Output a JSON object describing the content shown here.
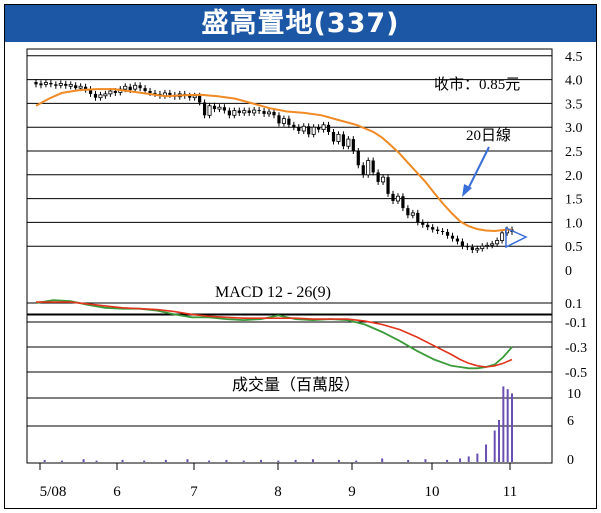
{
  "title": "盛高置地(337)",
  "colors": {
    "title_bg": "#1c57a6",
    "price_candles": "#000000",
    "ma20": "#f08a24",
    "macd_line": "#3a9a3a",
    "signal_line": "#e0341c",
    "volume_bars": "#6a4fb3",
    "annotation_arrow": "#3a6fd8"
  },
  "chart_data": [
    {
      "type": "line",
      "panel": "price",
      "y_ticks": [
        "4.5",
        "4.0",
        "3.5",
        "3.0",
        "2.5",
        "2.0",
        "1.5",
        "1.0",
        "0.5",
        "0"
      ],
      "ylim": [
        0,
        4.5
      ],
      "x_ticks": [
        "5/08",
        "6",
        "7",
        "8",
        "9",
        "10",
        "11"
      ],
      "annotations": [
        "收市：0.85元",
        "20日線"
      ],
      "series": [
        {
          "name": "20日線",
          "x": [
            0,
            3,
            6,
            10,
            14,
            18,
            22,
            26,
            30,
            34,
            38,
            42,
            46,
            50,
            54,
            58,
            62,
            66,
            70,
            74,
            78,
            80,
            82,
            84,
            86,
            88,
            90,
            92,
            94,
            96,
            98,
            100,
            102,
            104,
            106,
            108,
            110
          ],
          "values": [
            3.45,
            3.6,
            3.72,
            3.78,
            3.8,
            3.8,
            3.75,
            3.7,
            3.65,
            3.67,
            3.68,
            3.65,
            3.6,
            3.5,
            3.4,
            3.33,
            3.3,
            3.25,
            3.15,
            3.05,
            2.9,
            2.78,
            2.62,
            2.45,
            2.25,
            2.05,
            1.85,
            1.62,
            1.4,
            1.2,
            1.02,
            0.92,
            0.86,
            0.83,
            0.82,
            0.84,
            0.85
          ]
        }
      ],
      "candles": [
        [
          3.95,
          3.9
        ],
        [
          3.92,
          3.88
        ],
        [
          3.9,
          3.94
        ],
        [
          3.93,
          3.9
        ],
        [
          3.9,
          3.87
        ],
        [
          3.88,
          3.92
        ],
        [
          3.91,
          3.87
        ],
        [
          3.86,
          3.9
        ],
        [
          3.88,
          3.82
        ],
        [
          3.82,
          3.86
        ],
        [
          3.85,
          3.79
        ],
        [
          3.8,
          3.7
        ],
        [
          3.7,
          3.62
        ],
        [
          3.62,
          3.68
        ],
        [
          3.66,
          3.7
        ],
        [
          3.7,
          3.76
        ],
        [
          3.76,
          3.72
        ],
        [
          3.73,
          3.8
        ],
        [
          3.8,
          3.86
        ],
        [
          3.85,
          3.78
        ],
        [
          3.8,
          3.88
        ],
        [
          3.88,
          3.82
        ],
        [
          3.82,
          3.76
        ],
        [
          3.76,
          3.72
        ],
        [
          3.72,
          3.7
        ],
        [
          3.7,
          3.66
        ],
        [
          3.66,
          3.72
        ],
        [
          3.72,
          3.68
        ],
        [
          3.68,
          3.64
        ],
        [
          3.64,
          3.7
        ],
        [
          3.7,
          3.66
        ],
        [
          3.66,
          3.62
        ],
        [
          3.62,
          3.66
        ],
        [
          3.66,
          3.52
        ],
        [
          3.52,
          3.25
        ],
        [
          3.25,
          3.45
        ],
        [
          3.45,
          3.38
        ],
        [
          3.38,
          3.42
        ],
        [
          3.42,
          3.35
        ],
        [
          3.35,
          3.25
        ],
        [
          3.25,
          3.35
        ],
        [
          3.35,
          3.3
        ],
        [
          3.3,
          3.35
        ],
        [
          3.35,
          3.3
        ],
        [
          3.3,
          3.36
        ],
        [
          3.36,
          3.34
        ],
        [
          3.34,
          3.28
        ],
        [
          3.28,
          3.32
        ],
        [
          3.32,
          3.25
        ],
        [
          3.25,
          3.08
        ],
        [
          3.08,
          3.18
        ],
        [
          3.18,
          3.05
        ],
        [
          3.05,
          3.0
        ],
        [
          3.0,
          2.92
        ],
        [
          2.92,
          3.02
        ],
        [
          3.02,
          2.85
        ],
        [
          2.85,
          3.0
        ],
        [
          3.0,
          2.95
        ],
        [
          2.95,
          3.05
        ],
        [
          3.05,
          2.9
        ],
        [
          2.9,
          2.7
        ],
        [
          2.7,
          2.85
        ],
        [
          2.85,
          2.6
        ],
        [
          2.6,
          2.75
        ],
        [
          2.75,
          2.5
        ],
        [
          2.5,
          2.2
        ],
        [
          2.2,
          2.0
        ],
        [
          2.0,
          2.3
        ],
        [
          2.3,
          2.05
        ],
        [
          2.05,
          1.85
        ],
        [
          1.85,
          1.95
        ],
        [
          1.95,
          1.6
        ],
        [
          1.6,
          1.45
        ],
        [
          1.45,
          1.55
        ],
        [
          1.55,
          1.3
        ],
        [
          1.3,
          1.15
        ],
        [
          1.15,
          1.2
        ],
        [
          1.2,
          1.0
        ],
        [
          1.0,
          0.95
        ],
        [
          0.95,
          0.9
        ],
        [
          0.9,
          0.85
        ],
        [
          0.85,
          0.82
        ],
        [
          0.82,
          0.8
        ],
        [
          0.8,
          0.72
        ],
        [
          0.72,
          0.66
        ],
        [
          0.66,
          0.6
        ],
        [
          0.6,
          0.5
        ],
        [
          0.5,
          0.48
        ],
        [
          0.48,
          0.42
        ],
        [
          0.42,
          0.45
        ],
        [
          0.45,
          0.5
        ],
        [
          0.5,
          0.52
        ],
        [
          0.52,
          0.55
        ],
        [
          0.55,
          0.62
        ],
        [
          0.62,
          0.78
        ],
        [
          0.78,
          0.85
        ],
        [
          0.85,
          0.8
        ]
      ]
    },
    {
      "type": "line",
      "panel": "macd",
      "title": "MACD 12 - 26(9)",
      "y_ticks": [
        "0.1",
        "-0.1",
        "-0.3",
        "-0.5"
      ],
      "ylim": [
        -0.55,
        0.2
      ],
      "series": [
        {
          "name": "",
          "x": [
            0,
            4,
            8,
            12,
            16,
            20,
            24,
            28,
            32,
            36,
            40,
            44,
            48,
            52,
            56,
            60,
            64,
            68,
            72,
            76,
            80,
            84,
            88,
            92,
            96,
            98,
            100,
            102,
            104,
            106,
            108,
            110
          ],
          "values": [
            0.1,
            0.13,
            0.12,
            0.08,
            0.05,
            0.04,
            0.04,
            0.02,
            -0.02,
            -0.05,
            -0.05,
            -0.07,
            -0.08,
            -0.07,
            -0.03,
            -0.07,
            -0.08,
            -0.07,
            -0.08,
            -0.12,
            -0.18,
            -0.25,
            -0.33,
            -0.4,
            -0.45,
            -0.46,
            -0.47,
            -0.47,
            -0.46,
            -0.44,
            -0.38,
            -0.3
          ]
        },
        {
          "name": "",
          "x": [
            0,
            4,
            8,
            12,
            16,
            20,
            24,
            28,
            32,
            36,
            40,
            44,
            48,
            52,
            56,
            60,
            64,
            68,
            72,
            76,
            80,
            84,
            88,
            92,
            96,
            98,
            100,
            102,
            104,
            106,
            108,
            110
          ],
          "values": [
            0.11,
            0.11,
            0.11,
            0.09,
            0.07,
            0.05,
            0.04,
            0.03,
            0.01,
            -0.02,
            -0.04,
            -0.05,
            -0.06,
            -0.06,
            -0.06,
            -0.06,
            -0.07,
            -0.07,
            -0.07,
            -0.09,
            -0.12,
            -0.16,
            -0.22,
            -0.29,
            -0.36,
            -0.4,
            -0.43,
            -0.45,
            -0.46,
            -0.45,
            -0.43,
            -0.4
          ]
        }
      ]
    },
    {
      "type": "bar",
      "panel": "volume",
      "title": "成交量（百萬股）",
      "y_ticks": [
        "10",
        "6",
        "0"
      ],
      "ylim": [
        0,
        13
      ],
      "bars": [
        [
          2,
          0.3
        ],
        [
          6,
          0.2
        ],
        [
          11,
          0.4
        ],
        [
          14,
          0.2
        ],
        [
          20,
          0.3
        ],
        [
          25,
          0.2
        ],
        [
          30,
          0.3
        ],
        [
          35,
          0.4
        ],
        [
          40,
          0.2
        ],
        [
          44,
          0.3
        ],
        [
          48,
          0.2
        ],
        [
          52,
          0.3
        ],
        [
          56,
          0.2
        ],
        [
          60,
          0.3
        ],
        [
          64,
          0.4
        ],
        [
          70,
          0.3
        ],
        [
          74,
          0.2
        ],
        [
          80,
          0.5
        ],
        [
          86,
          0.3
        ],
        [
          90,
          0.4
        ],
        [
          95,
          0.3
        ],
        [
          98,
          0.5
        ],
        [
          100,
          0.8
        ],
        [
          102,
          1.2
        ],
        [
          104,
          2.5
        ],
        [
          106,
          4.5
        ],
        [
          107,
          6.0
        ],
        [
          108,
          10.8
        ],
        [
          109,
          10.4
        ],
        [
          110,
          9.8
        ]
      ]
    }
  ]
}
